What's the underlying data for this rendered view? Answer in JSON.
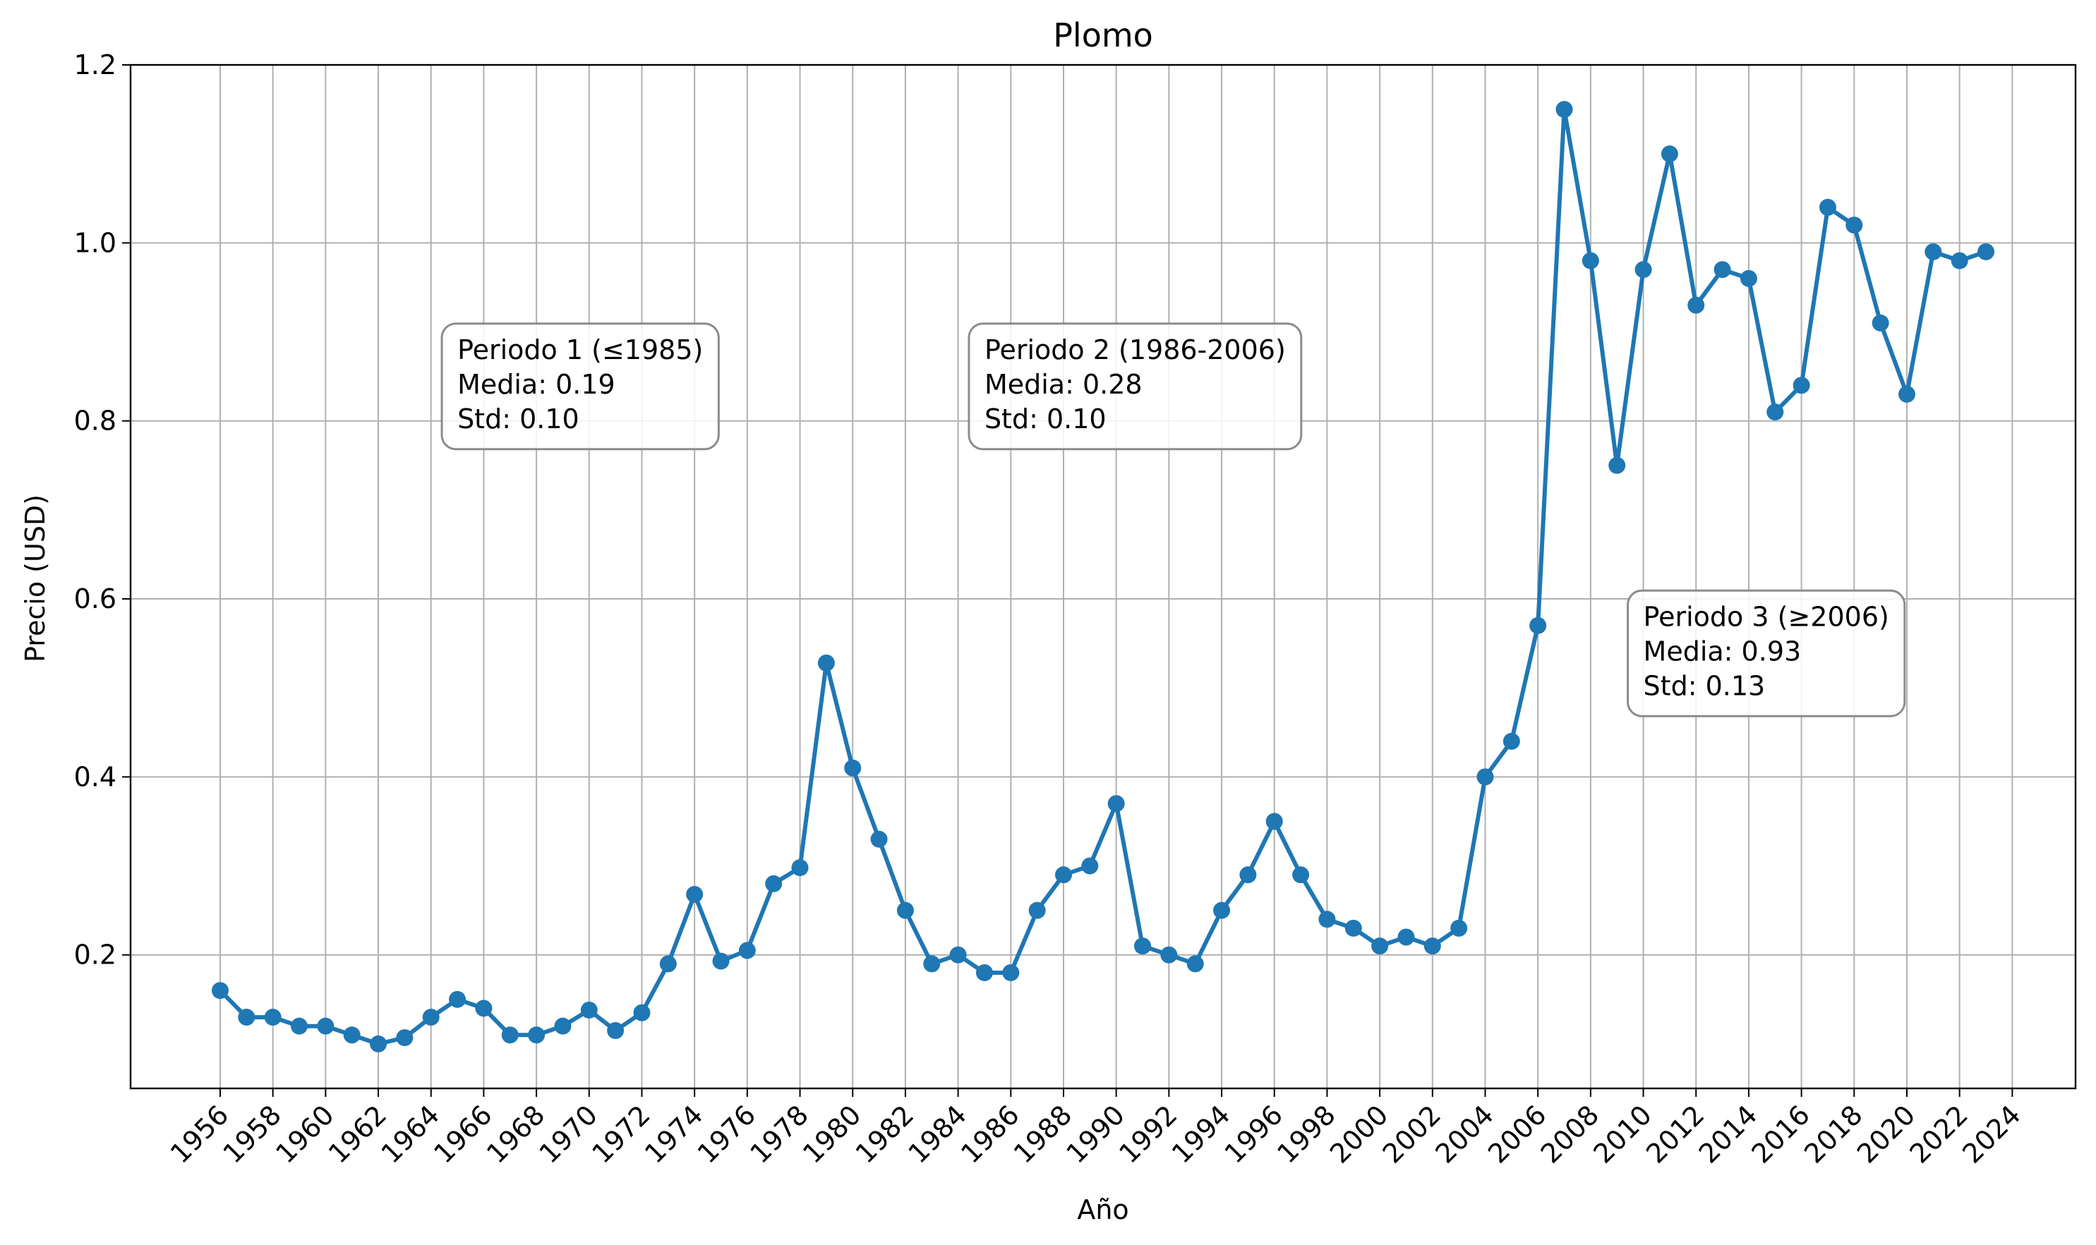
{
  "chart_data": {
    "type": "line",
    "title": "Plomo",
    "xlabel": "Año",
    "ylabel": "Precio (USD)",
    "xlim": [
      1952.6,
      2026.4
    ],
    "ylim": [
      0.05,
      1.2
    ],
    "x_ticks": [
      1956,
      1958,
      1960,
      1962,
      1964,
      1966,
      1968,
      1970,
      1972,
      1974,
      1976,
      1978,
      1980,
      1982,
      1984,
      1986,
      1988,
      1990,
      1992,
      1994,
      1996,
      1998,
      2000,
      2002,
      2004,
      2006,
      2008,
      2010,
      2012,
      2014,
      2016,
      2018,
      2020,
      2022,
      2024
    ],
    "y_ticks": [
      0.2,
      0.4,
      0.6,
      0.8,
      1.0,
      1.2
    ],
    "y_tick_labels": [
      "0.2",
      "0.4",
      "0.6",
      "0.8",
      "1.0",
      "1.2"
    ],
    "grid": true,
    "color": "#1f77b4",
    "series": [
      {
        "x": [
          1956,
          1957,
          1958,
          1959,
          1960,
          1961,
          1962,
          1963,
          1964,
          1965,
          1966,
          1967,
          1968,
          1969,
          1970,
          1971,
          1972,
          1973,
          1974,
          1975,
          1976,
          1977,
          1978,
          1979,
          1980,
          1981,
          1982,
          1983,
          1984,
          1985,
          1986,
          1987,
          1988,
          1989,
          1990,
          1991,
          1992,
          1993,
          1994,
          1995,
          1996,
          1997,
          1998,
          1999,
          2000,
          2001,
          2002,
          2003,
          2004,
          2005,
          2006,
          2007,
          2008,
          2009,
          2010,
          2011,
          2012,
          2013,
          2014,
          2015,
          2016,
          2017,
          2018,
          2019,
          2020,
          2021,
          2022,
          2023
        ],
        "values": [
          0.16,
          0.13,
          0.13,
          0.12,
          0.12,
          0.11,
          0.1,
          0.107,
          0.13,
          0.15,
          0.14,
          0.11,
          0.11,
          0.12,
          0.138,
          0.115,
          0.135,
          0.19,
          0.268,
          0.193,
          0.205,
          0.28,
          0.298,
          0.528,
          0.41,
          0.33,
          0.25,
          0.19,
          0.2,
          0.18,
          0.18,
          0.25,
          0.29,
          0.3,
          0.37,
          0.21,
          0.2,
          0.19,
          0.25,
          0.29,
          0.35,
          0.29,
          0.24,
          0.23,
          0.21,
          0.22,
          0.21,
          0.23,
          0.4,
          0.44,
          0.57,
          1.15,
          0.98,
          0.75,
          0.97,
          1.1,
          0.93,
          0.97,
          0.96,
          0.81,
          0.84,
          1.04,
          1.02,
          0.91,
          0.83,
          0.99,
          0.98,
          0.99
        ]
      }
    ],
    "annotations": [
      {
        "lines": [
          "Periodo 1 (≤1985)",
          "Media: 0.19",
          "Std: 0.10"
        ],
        "x": 1965,
        "y": 0.88
      },
      {
        "lines": [
          "Periodo 2 (1986-2006)",
          "Media: 0.28",
          "Std: 0.10"
        ],
        "x": 1985,
        "y": 0.88
      },
      {
        "lines": [
          "Periodo 3 (≥2006)",
          "Media: 0.93",
          "Std: 0.13"
        ],
        "x": 2010,
        "y": 0.58
      }
    ]
  }
}
